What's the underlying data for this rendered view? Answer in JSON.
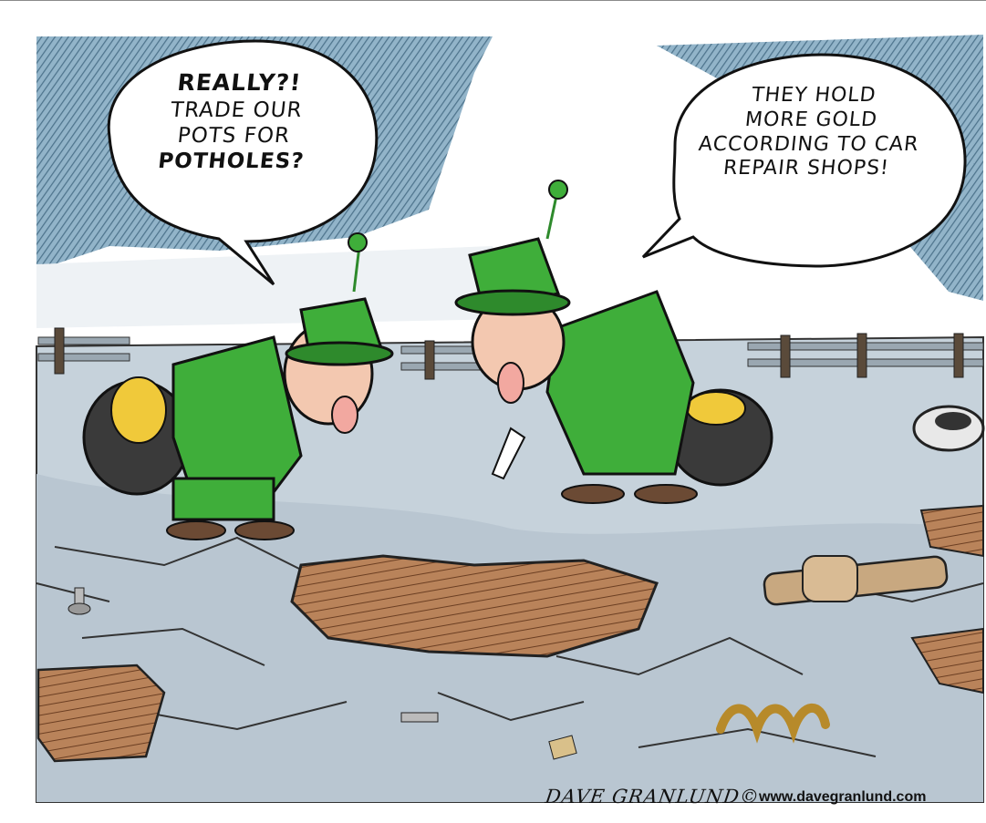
{
  "left_bubble": {
    "line1": "REALLY?!",
    "line2": "TRADE OUR",
    "line3": "POTS FOR",
    "line4": "POTHOLES?"
  },
  "right_bubble": {
    "line1": "THEY HOLD",
    "line2": "MORE GOLD",
    "line3": "ACCORDING TO CAR",
    "line4": "REPAIR SHOPS!"
  },
  "credit": {
    "signature": "DAVE GRANLUND©",
    "website": "www.davegranlund.com"
  },
  "colors": {
    "sky_hatch": "#3f6e8c",
    "road": "#c9d4dc",
    "pothole": "#a8734a",
    "leprechaun_green": "#3fae3a",
    "gold": "#f0c93a",
    "pot_black": "#3a3a3a"
  }
}
